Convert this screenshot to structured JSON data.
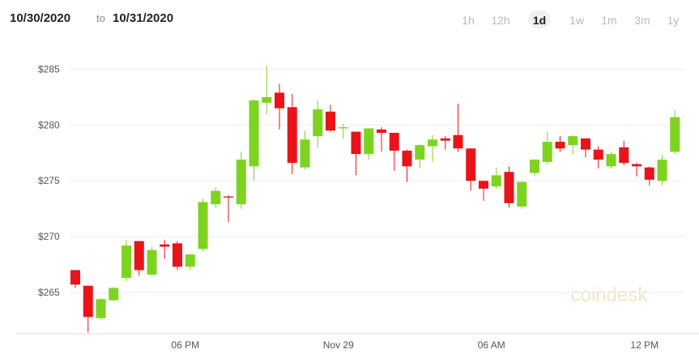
{
  "header": {
    "from": "10/30/2020",
    "to_word": "to",
    "to": "10/31/2020",
    "ranges": [
      "1h",
      "12h",
      "1d",
      "1w",
      "1m",
      "3m",
      "1y"
    ],
    "selected_range": "1d"
  },
  "watermark": "coindesk",
  "chart_data": {
    "type": "candlestick",
    "categories": [
      null,
      null,
      null,
      null,
      null,
      null,
      null,
      null,
      null,
      "06 PM",
      null,
      null,
      null,
      null,
      null,
      null,
      null,
      null,
      null,
      null,
      null,
      "Nov 29",
      null,
      null,
      null,
      null,
      null,
      null,
      null,
      null,
      null,
      null,
      null,
      "06 AM",
      null,
      null,
      null,
      null,
      null,
      null,
      null,
      null,
      null,
      null,
      null,
      "12 PM",
      null,
      null
    ],
    "open": [
      267.0,
      265.6,
      262.7,
      264.3,
      266.3,
      269.6,
      266.6,
      269.3,
      269.4,
      267.3,
      268.9,
      272.9,
      273.6,
      272.9,
      276.3,
      282.0,
      282.9,
      281.6,
      276.2,
      279.0,
      281.2,
      279.7,
      279.4,
      277.4,
      279.6,
      279.3,
      277.7,
      276.9,
      278.1,
      278.8,
      279.1,
      277.9,
      275.0,
      274.5,
      275.8,
      272.7,
      275.7,
      276.7,
      278.5,
      278.2,
      278.8,
      277.8,
      276.3,
      278.0,
      276.5,
      276.2,
      275.0,
      277.6
    ],
    "high": [
      267.0,
      265.6,
      264.5,
      265.5,
      269.7,
      269.6,
      269.1,
      269.7,
      269.6,
      268.4,
      273.4,
      274.4,
      273.7,
      277.6,
      282.3,
      285.3,
      283.7,
      282.8,
      279.5,
      282.2,
      281.8,
      280.1,
      279.4,
      279.7,
      279.8,
      279.3,
      277.8,
      278.3,
      279.1,
      279.0,
      281.9,
      277.9,
      275.0,
      276.2,
      276.3,
      275.0,
      276.9,
      279.4,
      279.0,
      279.1,
      278.8,
      278.1,
      277.6,
      278.6,
      276.6,
      276.3,
      277.3,
      281.3
    ],
    "low": [
      265.4,
      261.4,
      262.6,
      264.2,
      266.0,
      266.5,
      266.5,
      268.0,
      267.0,
      267.0,
      268.7,
      272.6,
      271.3,
      272.5,
      275.0,
      281.0,
      279.6,
      275.6,
      276.0,
      278.0,
      279.4,
      278.8,
      275.5,
      276.9,
      277.6,
      275.9,
      274.9,
      276.1,
      276.7,
      277.8,
      277.6,
      274.1,
      273.2,
      274.3,
      272.6,
      272.5,
      275.4,
      276.5,
      277.6,
      277.4,
      277.1,
      276.1,
      276.1,
      276.4,
      275.4,
      274.6,
      274.6,
      277.4
    ],
    "close": [
      265.7,
      262.8,
      264.4,
      265.4,
      269.2,
      267.0,
      268.8,
      269.1,
      267.3,
      268.4,
      273.1,
      274.1,
      273.5,
      276.9,
      282.2,
      282.5,
      281.5,
      276.6,
      278.7,
      281.4,
      279.5,
      279.8,
      277.4,
      279.7,
      279.3,
      277.7,
      276.3,
      278.2,
      278.7,
      278.6,
      277.9,
      275.0,
      274.3,
      275.5,
      273.0,
      274.9,
      276.9,
      278.5,
      277.9,
      279.0,
      277.8,
      276.9,
      277.4,
      276.6,
      276.3,
      275.1,
      276.9,
      280.7
    ],
    "up_color": "#7ed321",
    "down_color": "#e8141a",
    "ylim": [
      261.3,
      288.3
    ],
    "yticks": [
      {
        "value": 265,
        "label": "$265"
      },
      {
        "value": 270,
        "label": "$270"
      },
      {
        "value": 275,
        "label": "$275"
      },
      {
        "value": 280,
        "label": "$280"
      },
      {
        "value": 285,
        "label": "$285"
      }
    ],
    "grid": true
  }
}
